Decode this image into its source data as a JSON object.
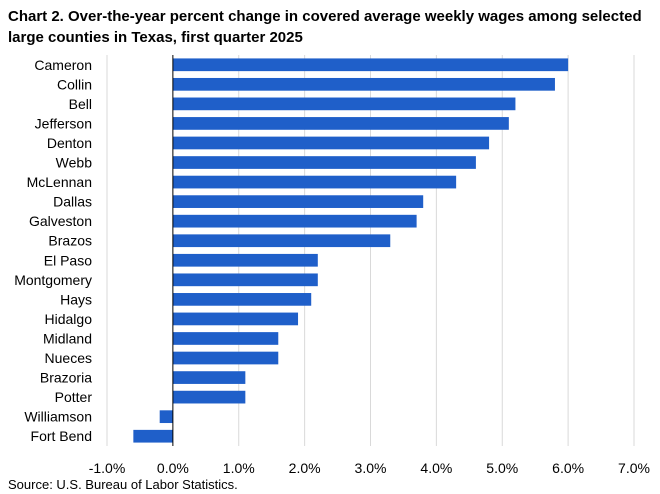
{
  "chart_data": {
    "type": "bar",
    "orientation": "horizontal",
    "title": "Chart 2. Over-the-year percent change in covered average weekly wages among selected large counties in Texas, first quarter 2025",
    "source": "Source: U.S. Bureau of Labor Statistics.",
    "categories": [
      "Cameron",
      "Collin",
      "Bell",
      "Jefferson",
      "Denton",
      "Webb",
      "McLennan",
      "Dallas",
      "Galveston",
      "Brazos",
      "El Paso",
      "Montgomery",
      "Hays",
      "Hidalgo",
      "Midland",
      "Nueces",
      "Brazoria",
      "Potter",
      "Williamson",
      "Fort Bend"
    ],
    "values": [
      6.0,
      5.8,
      5.2,
      5.1,
      4.8,
      4.6,
      4.3,
      3.8,
      3.7,
      3.3,
      2.2,
      2.2,
      2.1,
      1.9,
      1.6,
      1.6,
      1.1,
      1.1,
      -0.2,
      -0.6
    ],
    "xlim": [
      -1.0,
      7.0
    ],
    "xticks": [
      -1,
      0,
      1,
      2,
      3,
      4,
      5,
      6,
      7
    ],
    "xtick_labels": [
      "-1.0%",
      "0.0%",
      "1.0%",
      "2.0%",
      "3.0%",
      "4.0%",
      "5.0%",
      "6.0%",
      "7.0%"
    ],
    "grid": true,
    "bar_color": "#1f5fc9",
    "grid_color": "#d9d9d9"
  }
}
